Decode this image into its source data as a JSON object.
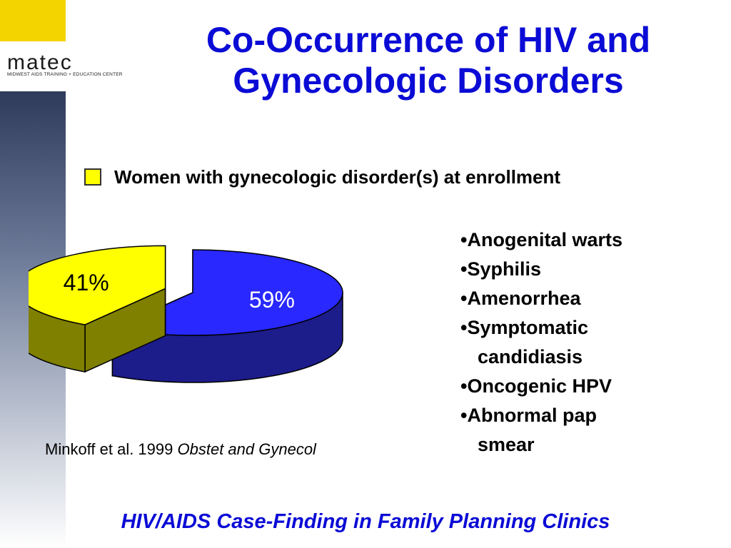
{
  "logo": {
    "wordmark": "matec",
    "tagline": "MIDWEST AIDS TRAINING + EDUCATION CENTER"
  },
  "title": {
    "line1": "Co-Occurrence of HIV and",
    "line2": "Gynecologic Disorders"
  },
  "colors": {
    "title_blue": "#0b0bd6",
    "accent_yellow": "#f4d400"
  },
  "chart_data": {
    "type": "pie",
    "legend": {
      "label": "Women with gynecologic disorder(s) at enrollment",
      "color": "#ffff00",
      "placement": "top"
    },
    "slices": [
      {
        "value": 59,
        "label": "59%",
        "color": "#2828ff",
        "side_color": "#1c1c8a",
        "exploded": false
      },
      {
        "value": 41,
        "label": "41%",
        "color": "#ffff00",
        "side_color": "#7f7f00",
        "exploded": true
      }
    ]
  },
  "disorders": [
    {
      "bullet": "•",
      "line1": "Anogenital warts"
    },
    {
      "bullet": "•",
      "line1": "Syphilis"
    },
    {
      "bullet": "•",
      "line1": "Amenorrhea"
    },
    {
      "bullet": "•",
      "line1": "Symptomatic",
      "line2": "candidiasis"
    },
    {
      "bullet": "•",
      "line1": "Oncogenic HPV"
    },
    {
      "bullet": "•",
      "line1": "Abnormal pap",
      "line2": "smear"
    }
  ],
  "citation": {
    "authors": "Minkoff et al. 1999",
    "journal": "Obstet and Gynecol"
  },
  "footer": "HIV/AIDS Case-Finding in Family Planning Clinics"
}
